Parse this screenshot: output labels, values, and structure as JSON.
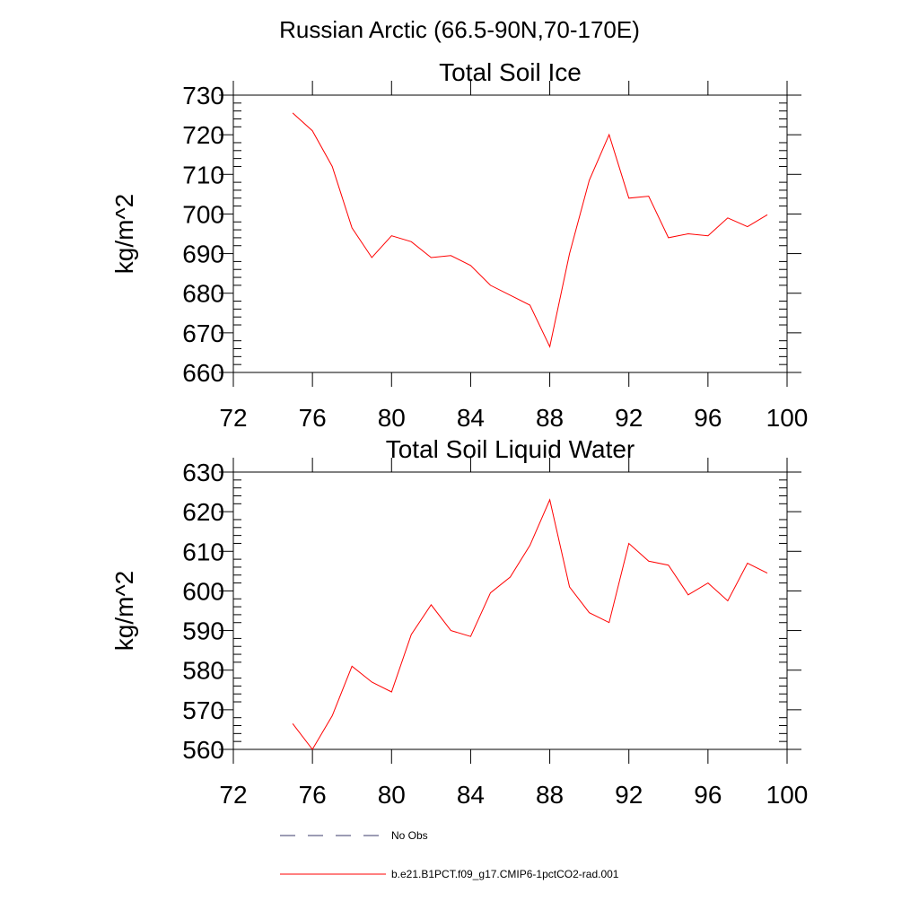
{
  "figure_title": "Russian Arctic (66.5-90N,70-170E)",
  "chart_data": [
    {
      "type": "line",
      "title": "Total Soil Ice",
      "xlabel": "",
      "ylabel": "kg/m^2",
      "xlim": [
        72,
        100
      ],
      "ylim": [
        660,
        730
      ],
      "x_ticks": [
        72,
        76,
        80,
        84,
        88,
        92,
        96,
        100
      ],
      "y_ticks": [
        660,
        670,
        680,
        690,
        700,
        710,
        720,
        730
      ],
      "grid": false,
      "series": [
        {
          "name": "b.e21.B1PCT.f09_g17.CMIP6-1pctCO2-rad.001",
          "color": "#ff0000",
          "x": [
            75,
            76,
            77,
            78,
            79,
            80,
            81,
            82,
            83,
            84,
            85,
            86,
            87,
            88,
            89,
            90,
            91,
            92,
            93,
            94,
            95,
            96,
            97,
            98,
            99
          ],
          "y": [
            725.5,
            721,
            712,
            696.5,
            689,
            694.5,
            693,
            689,
            689.5,
            687,
            682,
            679.5,
            677,
            666.5,
            690,
            708.5,
            720,
            704,
            704.5,
            694,
            695,
            694.5,
            699,
            696.8,
            699.8
          ]
        }
      ]
    },
    {
      "type": "line",
      "title": "Total Soil Liquid Water",
      "xlabel": "",
      "ylabel": "kg/m^2",
      "xlim": [
        72,
        100
      ],
      "ylim": [
        560,
        630
      ],
      "x_ticks": [
        72,
        76,
        80,
        84,
        88,
        92,
        96,
        100
      ],
      "y_ticks": [
        560,
        570,
        580,
        590,
        600,
        610,
        620,
        630
      ],
      "grid": false,
      "series": [
        {
          "name": "b.e21.B1PCT.f09_g17.CMIP6-1pctCO2-rad.001",
          "color": "#ff0000",
          "x": [
            75,
            76,
            77,
            78,
            79,
            80,
            81,
            82,
            83,
            84,
            85,
            86,
            87,
            88,
            89,
            90,
            91,
            92,
            93,
            94,
            95,
            96,
            97,
            98,
            99
          ],
          "y": [
            566.5,
            560,
            568.5,
            581,
            577,
            574.5,
            589,
            596.5,
            590,
            588.5,
            599.5,
            603.5,
            611.5,
            623,
            601,
            594.5,
            592,
            612,
            607.5,
            606.5,
            599,
            602,
            597.5,
            607,
            604.5
          ]
        }
      ]
    }
  ],
  "legend": {
    "placement": "bottom",
    "items": [
      {
        "label": "No Obs",
        "color": "#3a3a6a",
        "style": "dashed"
      },
      {
        "label": "b.e21.B1PCT.f09_g17.CMIP6-1pctCO2-rad.001",
        "color": "#ff0000",
        "style": "solid"
      }
    ]
  }
}
